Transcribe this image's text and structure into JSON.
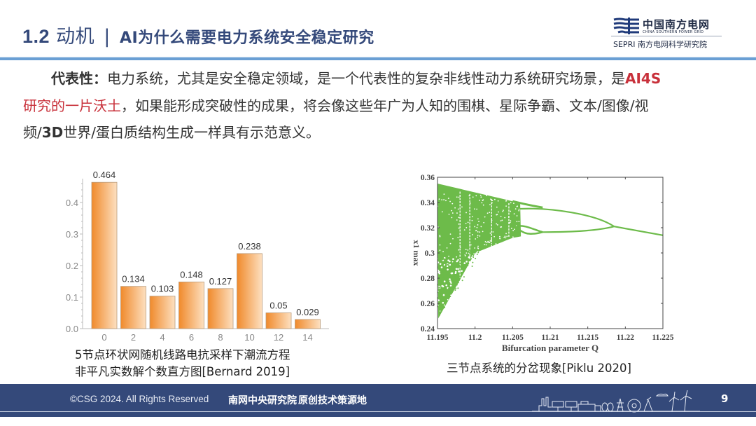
{
  "header": {
    "section_number": "1.2",
    "section_name": "动机",
    "separator": "|",
    "subtitle": "AI为什么需要电力系统安全稳定研究",
    "accent_color": "#34497a",
    "rule_color": "#6a9fd4"
  },
  "logo": {
    "name_cn": "中国南方电网",
    "name_en": "CHINA SOUTHERN POWER GRID",
    "institute": "SEPRI 南方电网科学研究院",
    "icon": "csg-logo-icon"
  },
  "body": {
    "line1": {
      "label": "代表性：",
      "text": "电力系统，尤其是安全稳定领域，是一个代表性的复杂非线性动力系统研究场景，是",
      "highlight": "AI4S"
    },
    "line2": {
      "highlight": "研究的一片沃土",
      "text": "，如果能形成突破性的成果，将会像这些年广为人知的围棋、星际争霸、文本/图像/视"
    },
    "line3": {
      "pre": "频/",
      "bold": "3D",
      "text": "世界/蛋白质结构生成一样具有示范意义。"
    },
    "highlight_color": "#c8303a"
  },
  "chart_data": [
    {
      "type": "bar",
      "title": "",
      "categories": [
        "0",
        "2",
        "4",
        "6",
        "8",
        "10",
        "12",
        "14"
      ],
      "values": [
        0.464,
        0.134,
        0.103,
        0.148,
        0.127,
        0.238,
        0.05,
        0.029
      ],
      "data_labels": [
        "0.464",
        "0.134",
        "0.103",
        "0.148",
        "0.127",
        "0.238",
        "0.05",
        "0.029"
      ],
      "xlabel": "",
      "ylabel": "",
      "yticks": [
        "0.0",
        "0.1",
        "0.2",
        "0.3",
        "0.4"
      ],
      "ylim": [
        0,
        0.48
      ],
      "grid": false,
      "bar_color": "#f08a2c",
      "caption_line1": "5节点环状网随机线路电抗采样下潮流方程",
      "caption_line2": "非平凡实数解个数直方图[Bernard 2019]"
    },
    {
      "type": "scatter",
      "title": "",
      "xlabel": "Bifurcation parameter Q",
      "ylabel": "x1 max",
      "xticks": [
        "11.195",
        "11.2",
        "11.205",
        "11.21",
        "11.215",
        "11.22",
        "11.225"
      ],
      "yticks": [
        "0.24",
        "0.26",
        "0.28",
        "0.3",
        "0.32",
        "0.34",
        "0.36"
      ],
      "xlim": [
        11.195,
        11.225
      ],
      "ylim": [
        0.24,
        0.36
      ],
      "point_color": "#6dbb4a",
      "description": "Bifurcation diagram: chaotic band for Q<11.205, period-doubling branches merging at Q≈11.209 and Q≈11.2185, single branch declining to 0.314 at Q=11.225",
      "branches": [
        {
          "name": "upper-envelope",
          "x": [
            11.195,
            11.2,
            11.205,
            11.209
          ],
          "y": [
            0.355,
            0.348,
            0.341,
            0.336
          ]
        },
        {
          "name": "single-branch",
          "x": [
            11.2185,
            11.225
          ],
          "y": [
            0.321,
            0.314
          ]
        },
        {
          "name": "period-2-upper",
          "x": [
            11.206,
            11.21,
            11.215,
            11.2185
          ],
          "y": [
            0.335,
            0.336,
            0.33,
            0.321
          ]
        },
        {
          "name": "period-2-lower",
          "x": [
            11.209,
            11.215,
            11.2185
          ],
          "y": [
            0.316,
            0.317,
            0.321
          ]
        },
        {
          "name": "lower-envelope",
          "x": [
            11.195,
            11.2,
            11.205,
            11.209
          ],
          "y": [
            0.247,
            0.3,
            0.312,
            0.316
          ]
        }
      ],
      "caption": "三节点系统的分岔现象[Piklu 2020]"
    }
  ],
  "footer": {
    "copyright": "©CSG 2024. All Rights Reserved",
    "slogan1": "南网中央研究院",
    "slogan2": "原创技术策源地",
    "page_number": "9",
    "background_color": "#34497a",
    "decoration": "energy-skyline-icon"
  }
}
